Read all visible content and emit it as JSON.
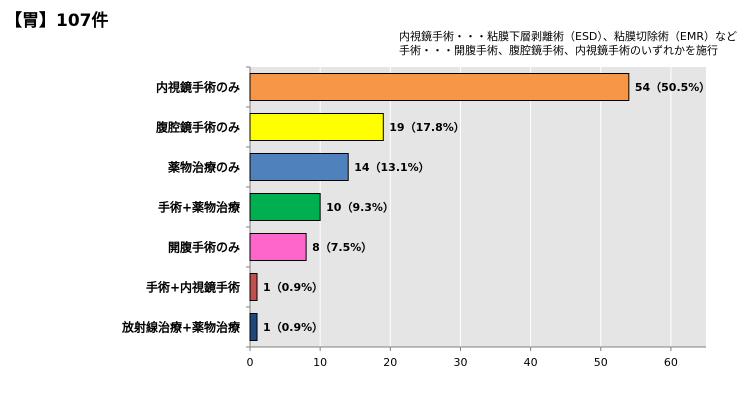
{
  "page": {
    "title": "【胃】107件",
    "notes": [
      "内視鏡手術・・・粘膜下層剥離術（ESD）、粘膜切除術（EMR）など",
      "手術・・・開腹手術、腹腔鏡手術、内視鏡手術のいずれかを施行"
    ]
  },
  "chart_data": {
    "type": "bar",
    "orientation": "horizontal",
    "categories": [
      "内視鏡手術のみ",
      "腹腔鏡手術のみ",
      "薬物治療のみ",
      "手術+薬物治療",
      "開腹手術のみ",
      "手術+内視鏡手術",
      "放射線治療+薬物治療"
    ],
    "values": [
      54,
      19,
      14,
      10,
      8,
      1,
      1
    ],
    "data_labels": [
      "54（50.5%）",
      "19（17.8%）",
      "14（13.1%）",
      "10（9.3%）",
      "8（7.5%）",
      "1（0.9%）",
      "1（0.9%）"
    ],
    "colors": [
      "#f79646",
      "#ffff00",
      "#4f81bd",
      "#00b050",
      "#ff66cc",
      "#c0504d",
      "#1f497d"
    ],
    "xlim": [
      0,
      65
    ],
    "xticks": [
      0,
      10,
      20,
      30,
      40,
      50,
      60
    ],
    "grid": true,
    "plot_background": "#e5e5e5"
  }
}
